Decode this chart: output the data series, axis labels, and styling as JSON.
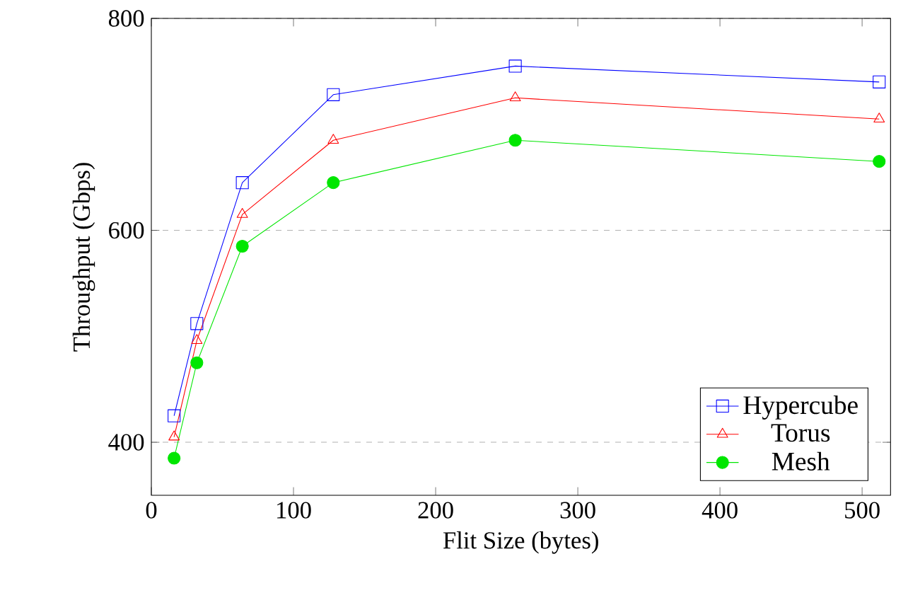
{
  "chart_data": {
    "type": "line",
    "xlabel": "Flit Size (bytes)",
    "ylabel": "Throughput (Gbps)",
    "x": [
      16,
      32,
      64,
      128,
      256,
      512
    ],
    "series": [
      {
        "name": "Hypercube",
        "color": "#0000ff",
        "marker": "square",
        "values": [
          425,
          512,
          645,
          728,
          755,
          740
        ]
      },
      {
        "name": "Torus",
        "color": "#ff0000",
        "marker": "triangle",
        "values": [
          405,
          496,
          615,
          685,
          725,
          705
        ]
      },
      {
        "name": "Mesh",
        "color": "#00e600",
        "marker": "circle",
        "values": [
          385,
          475,
          585,
          645,
          685,
          665
        ]
      }
    ],
    "xlim": [
      0,
      520
    ],
    "ylim": [
      350,
      800
    ],
    "xticks": [
      0,
      100,
      200,
      300,
      400,
      500
    ],
    "yticks": [
      400,
      600,
      800
    ],
    "grid": "y",
    "legend": "bottom right",
    "line_style": "solid"
  }
}
